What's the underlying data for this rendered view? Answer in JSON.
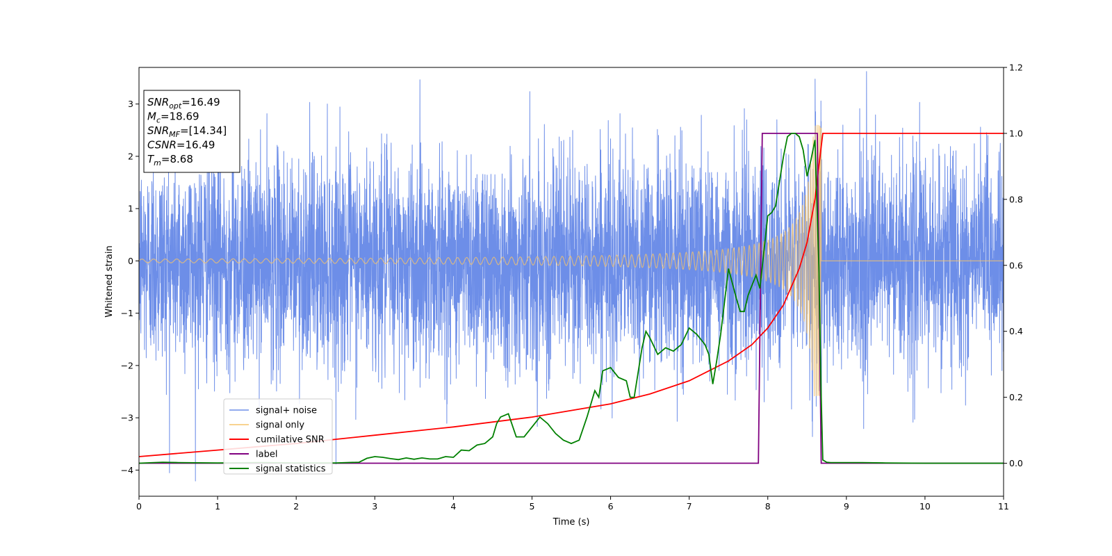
{
  "chart_data": {
    "type": "line",
    "xlabel": "Time (s)",
    "ylabel": "Whitened strain",
    "xlim": [
      0,
      11
    ],
    "ylim_left": [
      -4.5,
      3.7
    ],
    "ylim_right": [
      -0.1,
      1.2
    ],
    "x_ticks": [
      0,
      1,
      2,
      3,
      4,
      5,
      6,
      7,
      8,
      9,
      10,
      11
    ],
    "y_ticks_left": [
      -4,
      -3,
      -2,
      -1,
      0,
      1,
      2,
      3
    ],
    "y_ticks_left_labels": [
      "−4",
      "−3",
      "−2",
      "−1",
      "0",
      "1",
      "2",
      "3"
    ],
    "y_ticks_right": [
      0.0,
      0.2,
      0.4,
      0.6,
      0.8,
      1.0,
      1.2
    ],
    "y_ticks_right_labels": [
      "0.0",
      "0.2",
      "0.4",
      "0.6",
      "0.8",
      "1.0",
      "1.2"
    ],
    "grid": false,
    "legend_position": "lower-left",
    "annotation": [
      {
        "symbol": "SNR",
        "sub": "opt",
        "value": "=16.49"
      },
      {
        "symbol": "M",
        "sub": "c",
        "value": "=18.69"
      },
      {
        "symbol": "SNR",
        "sub": "MF",
        "value": "=[14.34]"
      },
      {
        "symbol": "CSNR",
        "sub": "",
        "value": "=16.49"
      },
      {
        "symbol": "T",
        "sub": "m",
        "value": "=8.68"
      }
    ],
    "series": [
      {
        "name": "signal+ noise",
        "color": "#6d8ee8",
        "axis": "left",
        "kind": "noise",
        "description_values": {
          "sigma": 1.0,
          "sample_rate_hz": 500,
          "signal_added": true
        }
      },
      {
        "name": "signal only",
        "color": "#f5c36b",
        "axis": "left",
        "kind": "chirp",
        "chirp": {
          "merger_time": 8.68,
          "amplitude_start": 0.035,
          "amplitude_peak": 2.6,
          "freq_start_hz": 6.7,
          "freq_end_hz": 45
        }
      },
      {
        "name": "cumilative SNR",
        "color": "#ff0000",
        "axis": "right",
        "x": [
          0,
          1,
          2,
          3,
          4,
          5,
          6,
          6.5,
          7,
          7.5,
          7.8,
          8.0,
          8.2,
          8.4,
          8.5,
          8.6,
          8.65,
          8.68,
          8.7,
          11
        ],
        "y": [
          0.02,
          0.04,
          0.06,
          0.085,
          0.11,
          0.14,
          0.18,
          0.21,
          0.25,
          0.31,
          0.36,
          0.41,
          0.48,
          0.59,
          0.67,
          0.8,
          0.9,
          0.96,
          1.0,
          1.0
        ]
      },
      {
        "name": "label",
        "color": "#800080",
        "axis": "right",
        "x": [
          0,
          7.88,
          7.93,
          8.63,
          8.68,
          11
        ],
        "y": [
          0,
          0,
          1,
          1,
          0,
          0
        ]
      },
      {
        "name": "signal statistics",
        "color": "#008000",
        "axis": "right",
        "x": [
          0,
          0.3,
          0.5,
          1,
          1.5,
          2,
          2.5,
          2.8,
          2.9,
          3.0,
          3.1,
          3.2,
          3.3,
          3.4,
          3.5,
          3.6,
          3.7,
          3.8,
          3.9,
          4.0,
          4.1,
          4.2,
          4.3,
          4.4,
          4.5,
          4.55,
          4.6,
          4.7,
          4.8,
          4.9,
          5.0,
          5.1,
          5.2,
          5.3,
          5.4,
          5.5,
          5.6,
          5.7,
          5.8,
          5.85,
          5.9,
          6.0,
          6.1,
          6.2,
          6.25,
          6.3,
          6.4,
          6.45,
          6.5,
          6.6,
          6.7,
          6.8,
          6.9,
          7.0,
          7.1,
          7.2,
          7.25,
          7.3,
          7.35,
          7.4,
          7.5,
          7.6,
          7.65,
          7.7,
          7.75,
          7.8,
          7.85,
          7.9,
          8.0,
          8.05,
          8.1,
          8.2,
          8.25,
          8.3,
          8.35,
          8.4,
          8.45,
          8.5,
          8.55,
          8.6,
          8.65,
          8.68,
          8.7,
          8.75,
          8.8,
          9.0,
          9.2,
          9.5,
          10,
          11
        ],
        "y": [
          0.0,
          0.003,
          0.002,
          0.001,
          0.002,
          0.001,
          0.001,
          0.003,
          0.015,
          0.02,
          0.018,
          0.014,
          0.011,
          0.016,
          0.012,
          0.016,
          0.013,
          0.013,
          0.02,
          0.018,
          0.04,
          0.038,
          0.055,
          0.06,
          0.08,
          0.12,
          0.14,
          0.15,
          0.08,
          0.08,
          0.11,
          0.14,
          0.12,
          0.09,
          0.07,
          0.06,
          0.07,
          0.14,
          0.22,
          0.2,
          0.28,
          0.29,
          0.26,
          0.25,
          0.2,
          0.2,
          0.35,
          0.4,
          0.38,
          0.33,
          0.35,
          0.34,
          0.36,
          0.41,
          0.39,
          0.36,
          0.33,
          0.24,
          0.31,
          0.39,
          0.59,
          0.5,
          0.46,
          0.46,
          0.51,
          0.54,
          0.57,
          0.53,
          0.75,
          0.76,
          0.78,
          0.93,
          0.99,
          1.0,
          1.0,
          0.99,
          0.95,
          0.87,
          0.92,
          0.98,
          0.6,
          0.2,
          0.01,
          0.003,
          0.002,
          0.002,
          0.002,
          0.001,
          0.0,
          0.0
        ]
      }
    ]
  }
}
